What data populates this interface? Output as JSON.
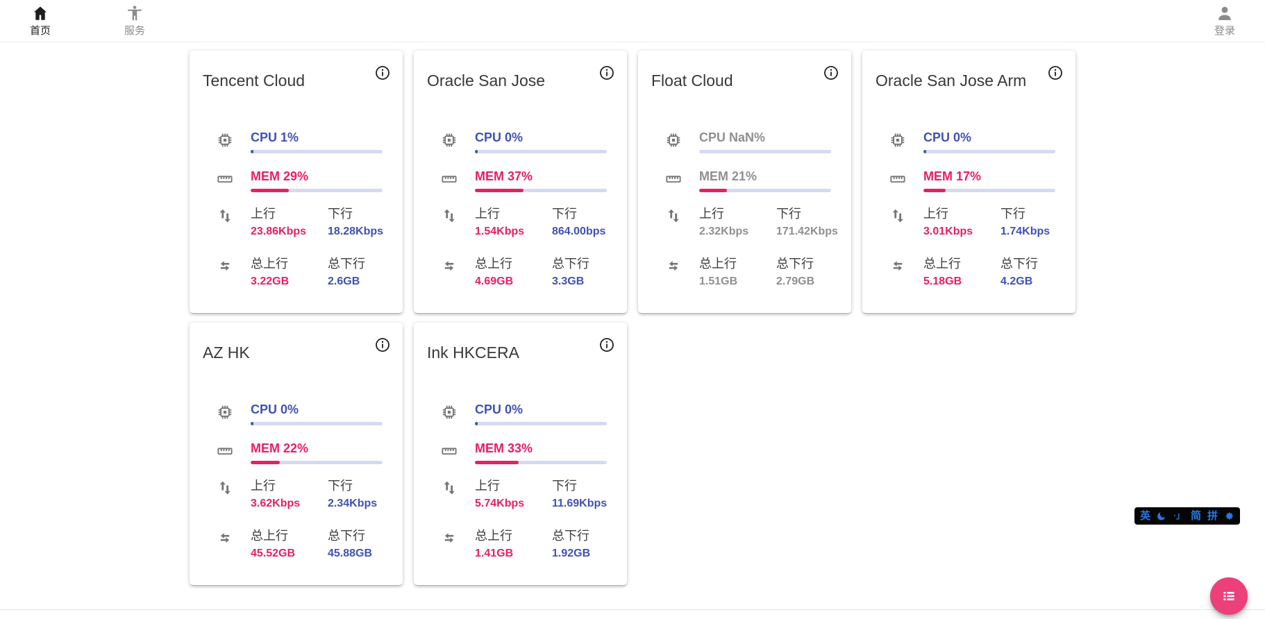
{
  "nav": {
    "home": {
      "label": "首页"
    },
    "services": {
      "label": "服务"
    },
    "login": {
      "label": "登录"
    }
  },
  "colors": {
    "accent_blue": "#3f51b5",
    "accent_pink": "#e91e63",
    "offline_gray": "#8f8f8f",
    "bar_track": "#d6daf1",
    "fab_pink": "#ec407a",
    "ime_blue": "#2678e3"
  },
  "cards": [
    {
      "title": "Tencent Cloud",
      "cpu": {
        "label": "CPU 1%",
        "percent": 1
      },
      "mem": {
        "label": "MEM 29%",
        "percent": 29
      },
      "net": {
        "up_label": "上行",
        "up": "23.86Kbps",
        "down_label": "下行",
        "down": "18.28Kbps"
      },
      "total": {
        "up_label": "总上行",
        "up": "3.22GB",
        "down_label": "总下行",
        "down": "2.6GB"
      }
    },
    {
      "title": "Oracle San Jose",
      "cpu": {
        "label": "CPU 0%",
        "percent": 0
      },
      "mem": {
        "label": "MEM 37%",
        "percent": 37
      },
      "net": {
        "up_label": "上行",
        "up": "1.54Kbps",
        "down_label": "下行",
        "down": "864.00bps"
      },
      "total": {
        "up_label": "总上行",
        "up": "4.69GB",
        "down_label": "总下行",
        "down": "3.3GB"
      }
    },
    {
      "title": "Float Cloud",
      "cpu": {
        "label": "CPU NaN%",
        "percent": null
      },
      "mem": {
        "label": "MEM 21%",
        "percent": 21
      },
      "net": {
        "up_label": "上行",
        "up": "2.32Kbps",
        "down_label": "下行",
        "down": "171.42Kbps"
      },
      "total": {
        "up_label": "总上行",
        "up": "1.51GB",
        "down_label": "总下行",
        "down": "2.79GB"
      }
    },
    {
      "title": "Oracle San Jose Arm",
      "cpu": {
        "label": "CPU 0%",
        "percent": 0
      },
      "mem": {
        "label": "MEM 17%",
        "percent": 17
      },
      "net": {
        "up_label": "上行",
        "up": "3.01Kbps",
        "down_label": "下行",
        "down": "1.74Kbps"
      },
      "total": {
        "up_label": "总上行",
        "up": "5.18GB",
        "down_label": "总下行",
        "down": "4.2GB"
      }
    },
    {
      "title": "AZ HK",
      "cpu": {
        "label": "CPU 0%",
        "percent": 0
      },
      "mem": {
        "label": "MEM 22%",
        "percent": 22
      },
      "net": {
        "up_label": "上行",
        "up": "3.62Kbps",
        "down_label": "下行",
        "down": "2.34Kbps"
      },
      "total": {
        "up_label": "总上行",
        "up": "45.52GB",
        "down_label": "总下行",
        "down": "45.88GB"
      }
    },
    {
      "title": "Ink HKCERA",
      "cpu": {
        "label": "CPU 0%",
        "percent": 0
      },
      "mem": {
        "label": "MEM 33%",
        "percent": 33
      },
      "net": {
        "up_label": "上行",
        "up": "5.74Kbps",
        "down_label": "下行",
        "down": "11.69Kbps"
      },
      "total": {
        "up_label": "总上行",
        "up": "1.41GB",
        "down_label": "总下行",
        "down": "1.92GB"
      }
    }
  ],
  "ime": {
    "lang": "英",
    "punct": "·」",
    "simplified": "简",
    "pinyin": "拼"
  }
}
